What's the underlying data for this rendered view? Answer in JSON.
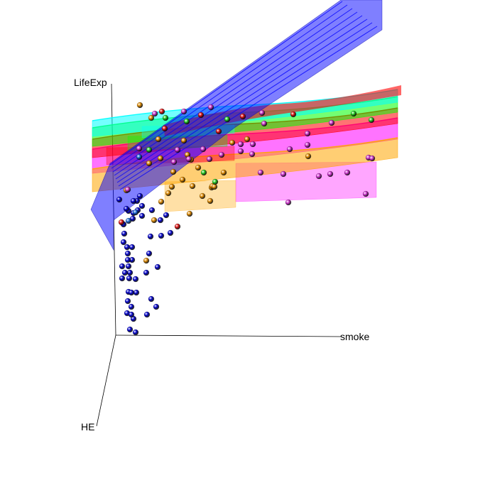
{
  "chart_data": {
    "type": "scatter",
    "projection": "3d",
    "title": "",
    "axes": {
      "x_label": "smoke",
      "y_label": "LifeExp",
      "z_label": "HE"
    },
    "grid": false,
    "legend": "none",
    "surfaces": [
      {
        "color": "#0000ff",
        "shape": "steep-plane"
      },
      {
        "color": "#ff0000",
        "shape": "curved-sheet"
      },
      {
        "color": "#00ffff",
        "shape": "curved-sheet"
      },
      {
        "color": "#00ff00",
        "shape": "curved-sheet"
      },
      {
        "color": "#ff00ff",
        "shape": "curved-sheet"
      },
      {
        "color": "#ffa500",
        "shape": "curved-sheet"
      }
    ],
    "point_groups": [
      {
        "color": "#0000cc",
        "label": "blue",
        "count": 48
      },
      {
        "color": "#dd8800",
        "label": "orange",
        "count": 28
      },
      {
        "color": "#cc33cc",
        "label": "magenta",
        "count": 30
      },
      {
        "color": "#22cc22",
        "label": "green",
        "count": 8
      },
      {
        "color": "#dd1111",
        "label": "red",
        "count": 8
      },
      {
        "color": "#1a6ad8",
        "label": "lightblue",
        "count": 3
      }
    ]
  }
}
